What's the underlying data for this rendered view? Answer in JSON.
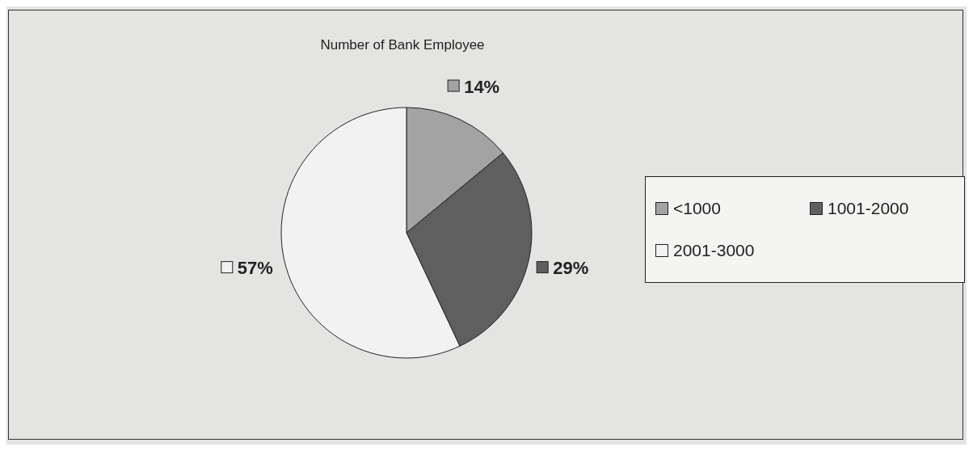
{
  "chart_data": {
    "type": "pie",
    "title": "Number of Bank Employee",
    "categories": [
      "<1000",
      "1001-2000",
      "2001-3000"
    ],
    "values": [
      14,
      29,
      57
    ],
    "colors": [
      "#a3a3a3",
      "#5f5f5f",
      "#f2f2f2"
    ],
    "value_labels": [
      "14%",
      "29%",
      "57%"
    ],
    "legend": "right"
  }
}
